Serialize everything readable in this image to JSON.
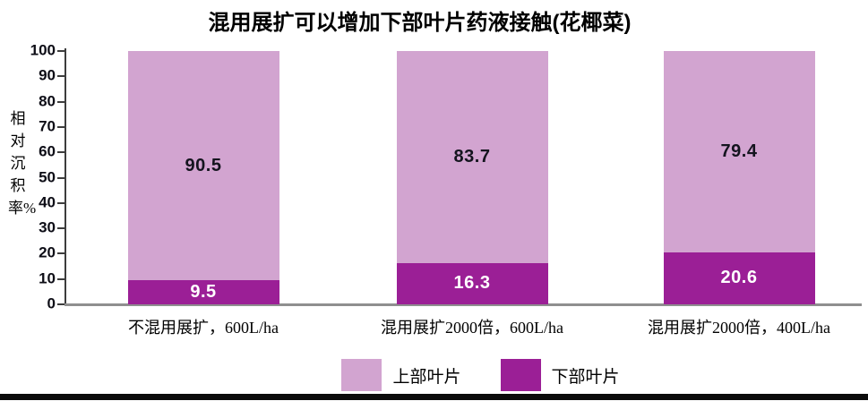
{
  "page": {
    "background": "#ffffff",
    "bottom_rule_color": "#0b0b0b"
  },
  "chart_data": {
    "type": "bar",
    "subtype": "stacked",
    "title": "混用展扩可以增加下部叶片药液接触(花椰菜)",
    "xlabel": "",
    "ylabel": "相对沉积率%",
    "ylim": [
      0,
      100
    ],
    "ytick_step": 10,
    "grid": false,
    "legend_position": "bottom",
    "categories": [
      "不混用展扩，600L/ha",
      "混用展扩2000倍，600L/ha",
      "混用展扩2000倍，400L/ha"
    ],
    "series": [
      {
        "name": "上部叶片",
        "color": "#d2a4d0",
        "label_color": "#14141e",
        "values": [
          90.5,
          83.7,
          79.4
        ]
      },
      {
        "name": "下部叶片",
        "color": "#9b1f96",
        "label_color": "#ffffff",
        "values": [
          9.5,
          16.3,
          20.6
        ]
      }
    ],
    "axis_color": "#3d3d3d",
    "baseline_color": "#8f8f8f",
    "tick_label_color": "#0d0d16"
  }
}
